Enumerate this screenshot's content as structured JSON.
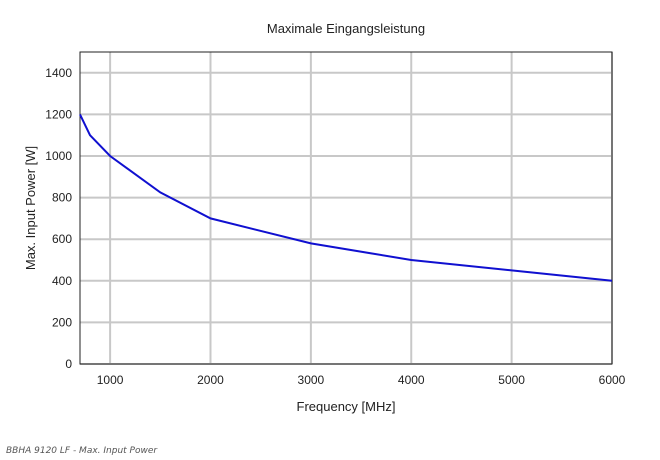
{
  "chart_data": {
    "type": "line",
    "title": "Maximale Eingangsleistung",
    "xlabel": "Frequency [MHz]",
    "ylabel": "Max. Input Power [W]",
    "xlim": [
      700,
      6000
    ],
    "ylim": [
      0,
      1500
    ],
    "xticks": [
      1000,
      2000,
      3000,
      4000,
      5000,
      6000
    ],
    "yticks": [
      0,
      200,
      400,
      600,
      800,
      1000,
      1200,
      1400
    ],
    "grid": true,
    "series": [
      {
        "name": "Max. Input Power",
        "color": "#1010d0",
        "x": [
          700,
          800,
          1000,
          1500,
          2000,
          3000,
          4000,
          5000,
          6000
        ],
        "y": [
          1200,
          1100,
          1000,
          825,
          700,
          580,
          500,
          450,
          400
        ]
      }
    ]
  },
  "caption": "BBHA 9120 LF - Max. Input Power"
}
